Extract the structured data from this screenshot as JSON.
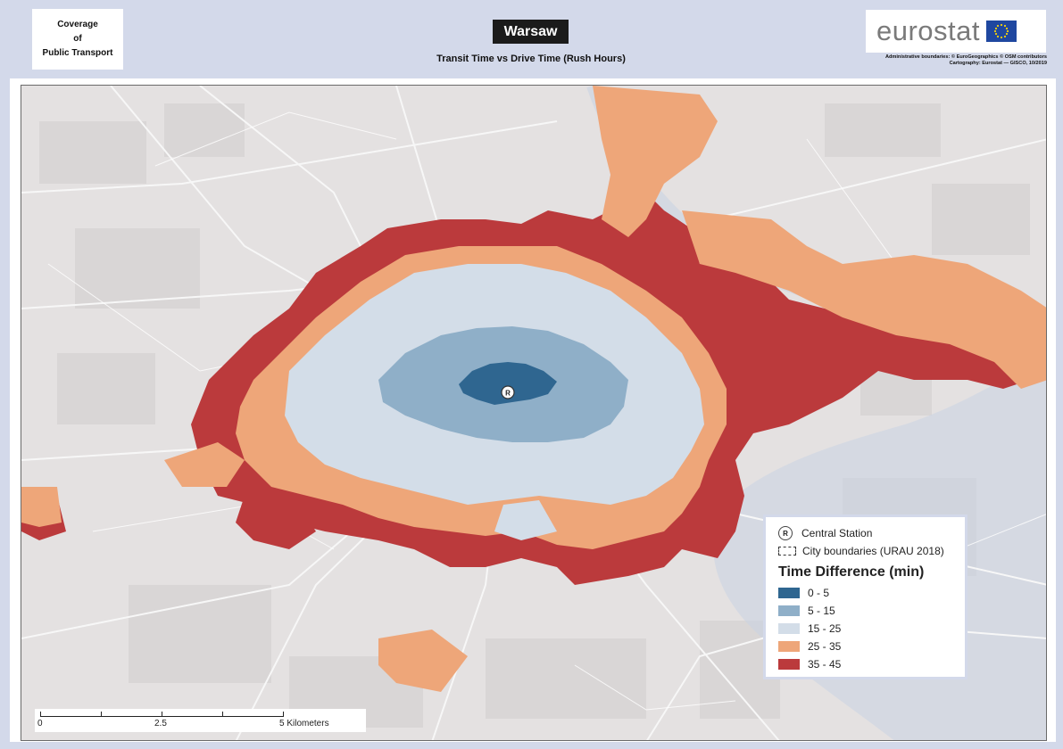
{
  "header": {
    "coverage_line1": "Coverage",
    "coverage_line2": "of",
    "coverage_line3": "Public Transport",
    "city": "Warsaw",
    "subtitle": "Transit Time vs Drive Time (Rush Hours)",
    "logo_text": "eurostat",
    "credits_line1": "Administrative boundaries: © EuroGeographics © OSM contributors",
    "credits_line2": "Cartography: Eurostat — GISCO, 10/2019"
  },
  "legend": {
    "station_label": "Central Station",
    "station_symbol": "R",
    "boundary_label": "City boundaries (URAU 2018)",
    "title": "Time Difference (min)",
    "classes": [
      {
        "label": "0 - 5",
        "color": "#2f6690"
      },
      {
        "label": "5 - 15",
        "color": "#8fafc8"
      },
      {
        "label": "15 - 25",
        "color": "#d3dde8"
      },
      {
        "label": "25 - 35",
        "color": "#eea679"
      },
      {
        "label": "35 - 45",
        "color": "#bb3a3c"
      }
    ]
  },
  "scalebar": {
    "label_start": "0",
    "label_mid": "2.5",
    "label_end": "5 Kilometers"
  },
  "map_colors": {
    "basemap": "#e4e1e1",
    "roads": "#f7f7f7",
    "water": "#c9d4e3"
  }
}
